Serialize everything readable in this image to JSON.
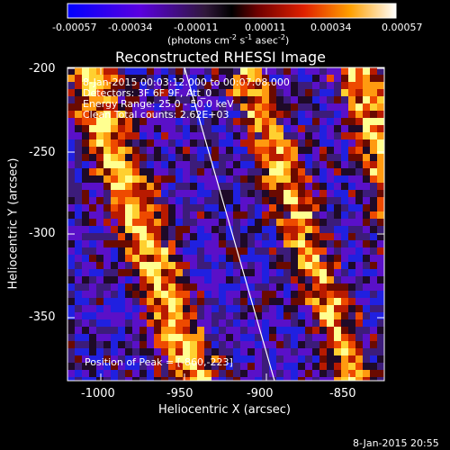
{
  "colorbar": {
    "ticks": [
      "-0.00057",
      "-0.00034",
      "-0.00011",
      "0.00011",
      "0.00034",
      "0.00057"
    ],
    "units_prefix": "(photons cm",
    "units_sup1": "-2",
    "units_mid": " s",
    "units_sup2": "-1",
    "units_mid2": " asec",
    "units_sup3": "-2",
    "units_suffix": ")"
  },
  "plot": {
    "title": "Reconstructed RHESSI Image",
    "xlabel": "Heliocentric X (arcsec)",
    "ylabel": "Heliocentric Y (arcsec)",
    "xticks": [
      "-1000",
      "-950",
      "-900",
      "-850"
    ],
    "yticks": [
      "-200",
      "-250",
      "-300",
      "-350"
    ],
    "info": [
      "8-Jan-2015 00:03:12.000 to 00:07:08.000",
      "Detectors: 3F 6F 9F, Att_0",
      "Energy Range: 25.0 - 50.0 keV",
      "Clean    Total counts: 2.62E+03"
    ],
    "peak_label": "Position of Peak = [-860,-223]"
  },
  "timestamp": "8-Jan-2015 20:55"
}
